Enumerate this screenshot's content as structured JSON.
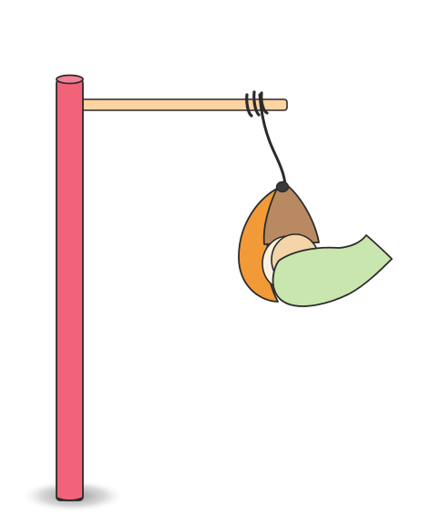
{
  "scene": {
    "description_name": "pole-with-hanging-bundle",
    "colors": {
      "background": "#ffffff",
      "pole": "#f2637a",
      "pole_top": "#f58294",
      "arm": "#fdd3a2",
      "outline": "#2b2b2b",
      "bag_orange": "#f29a38",
      "bag_brown": "#b98a62",
      "bag_tan": "#f4d4a8",
      "bag_cream": "#fbf1e2",
      "cloth_green": "#c8e6ad",
      "shadow": "#8a8a8a"
    },
    "icons": [
      "pole-icon",
      "hanging-bundle-icon",
      "rope-icon"
    ]
  }
}
